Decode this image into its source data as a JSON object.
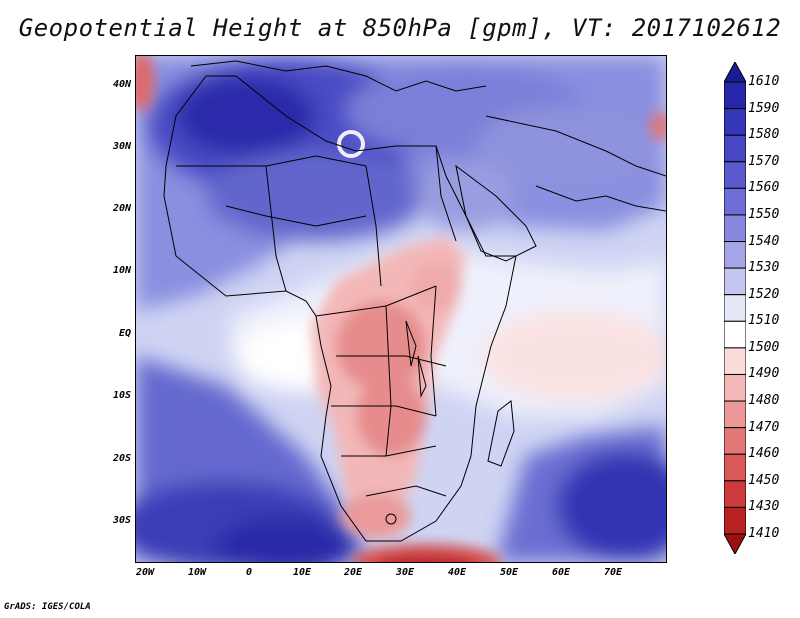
{
  "title": "Geopotential Height at 850hPa [gpm], VT: 2017102612",
  "credit": "GrADS: IGES/COLA",
  "x_ticks": [
    "20W",
    "10W",
    "0",
    "10E",
    "20E",
    "30E",
    "40E",
    "50E",
    "60E",
    "70E"
  ],
  "y_ticks": [
    "40N",
    "30N",
    "20N",
    "10N",
    "EQ",
    "10S",
    "20S",
    "30S"
  ],
  "colorbar": {
    "levels": [
      "1610",
      "1590",
      "1580",
      "1570",
      "1560",
      "1550",
      "1540",
      "1530",
      "1520",
      "1510",
      "1500",
      "1490",
      "1480",
      "1470",
      "1460",
      "1450",
      "1430",
      "1410"
    ],
    "colors": [
      "#1b1b96",
      "#2626a8",
      "#3535b8",
      "#4747c4",
      "#5a5acd",
      "#6e6ed6",
      "#8888de",
      "#a4a4e6",
      "#c4c6f0",
      "#e6e8f8",
      "#ffffff",
      "#fbdada",
      "#f4b8b8",
      "#ec9898",
      "#e37878",
      "#d95858",
      "#cc3a3a",
      "#b82222",
      "#9e1010"
    ]
  },
  "chart_data": {
    "type": "heatmap",
    "title": "Geopotential Height at 850hPa [gpm], VT: 2017102612",
    "variable": "Geopotential Height at 850hPa",
    "units": "gpm",
    "valid_time": "2017102612",
    "x_range": [
      -23,
      80
    ],
    "y_range": [
      -37,
      45
    ],
    "x_ticks": [
      "20W",
      "10W",
      "0",
      "10E",
      "20E",
      "30E",
      "40E",
      "50E",
      "60E",
      "70E"
    ],
    "y_ticks": [
      "40N",
      "30N",
      "20N",
      "10N",
      "EQ",
      "10S",
      "20S",
      "30S"
    ],
    "levels": [
      1410,
      1430,
      1450,
      1460,
      1470,
      1480,
      1490,
      1500,
      1510,
      1520,
      1530,
      1540,
      1550,
      1560,
      1570,
      1580,
      1590,
      1610
    ]
  }
}
